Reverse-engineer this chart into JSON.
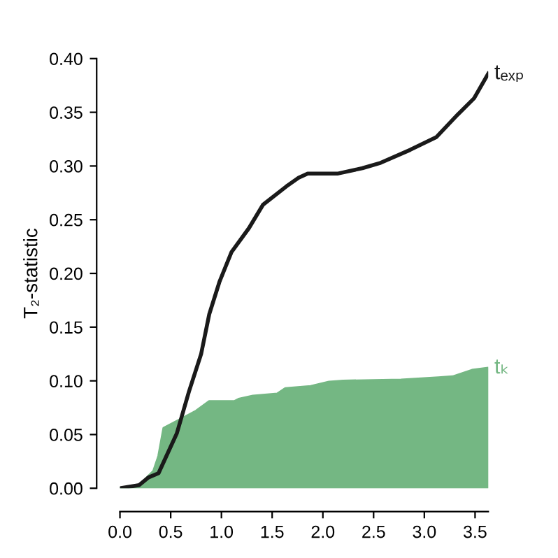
{
  "chart_data": {
    "type": "line",
    "ylabel": "T₂-statistic",
    "xlim": [
      0,
      3.63
    ],
    "ylim": [
      0,
      0.4
    ],
    "xticks": [
      {
        "value": 0,
        "label": "0.0"
      },
      0.5,
      {
        "value": 1,
        "label": "1.0"
      },
      1.5,
      {
        "value": 2,
        "label": "2.0"
      },
      2.5,
      {
        "value": 3,
        "label": "3.0"
      },
      3.5
    ],
    "yticks": [
      {
        "value": 0,
        "label": "0.00"
      },
      0.05,
      {
        "value": 0.1,
        "label": "0.10"
      },
      0.15,
      {
        "value": 0.2,
        "label": "0.20"
      },
      0.25,
      {
        "value": 0.3,
        "label": "0.30"
      },
      0.35,
      {
        "value": 0.4,
        "label": "0.40"
      }
    ],
    "grid": false,
    "legend": false,
    "series": [
      {
        "name": "tₖ",
        "type": "area",
        "color": "#74b783",
        "x": [
          0,
          0.19,
          0.33,
          0.38,
          0.43,
          0.63,
          0.75,
          0.88,
          1.13,
          1.17,
          1.31,
          1.55,
          1.63,
          1.88,
          2.06,
          2.2,
          2.77,
          3.14,
          3.28,
          3.47,
          3.63
        ],
        "values": [
          0,
          0.003,
          0.016,
          0.03,
          0.056,
          0.066,
          0.072,
          0.081,
          0.081,
          0.083,
          0.086,
          0.088,
          0.093,
          0.095,
          0.099,
          0.1,
          0.101,
          0.103,
          0.104,
          0.11,
          0.112
        ]
      },
      {
        "name": "tₑₓₚ",
        "color": "#1a1a1a",
        "x": [
          0,
          0.19,
          0.28,
          0.38,
          0.56,
          0.68,
          0.8,
          0.88,
          0.98,
          1.1,
          1.27,
          1.41,
          1.64,
          1.76,
          1.85,
          2.15,
          2.39,
          2.57,
          2.86,
          3.12,
          3.33,
          3.49,
          3.63
        ],
        "values": [
          0,
          0.003,
          0.01,
          0.014,
          0.051,
          0.09,
          0.125,
          0.162,
          0.192,
          0.22,
          0.242,
          0.264,
          0.281,
          0.289,
          0.293,
          0.293,
          0.298,
          0.303,
          0.315,
          0.327,
          0.348,
          0.363,
          0.386
        ]
      }
    ]
  }
}
